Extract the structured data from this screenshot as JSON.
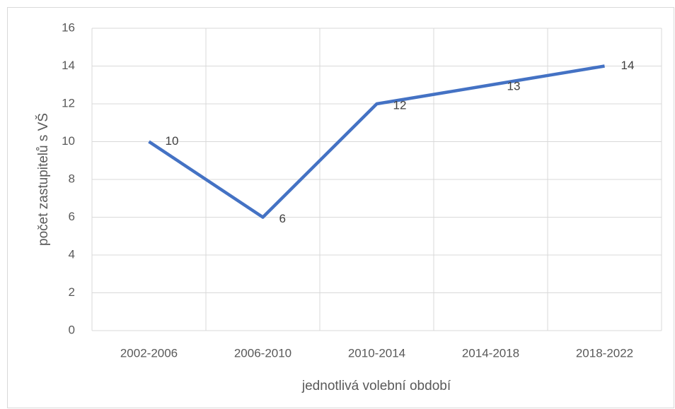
{
  "chart_data": {
    "type": "line",
    "x_label": "jednotlivá volební období",
    "y_label": "počet zastupitelů s VŠ",
    "categories": [
      "2002-2006",
      "2006-2010",
      "2010-2014",
      "2014-2018",
      "2018-2022"
    ],
    "values": [
      10,
      6,
      12,
      13,
      14
    ],
    "color": "#4472c4",
    "ylim": [
      0,
      16
    ],
    "yticks": [
      0,
      2,
      4,
      6,
      8,
      10,
      12,
      14,
      16
    ],
    "grid": true
  }
}
